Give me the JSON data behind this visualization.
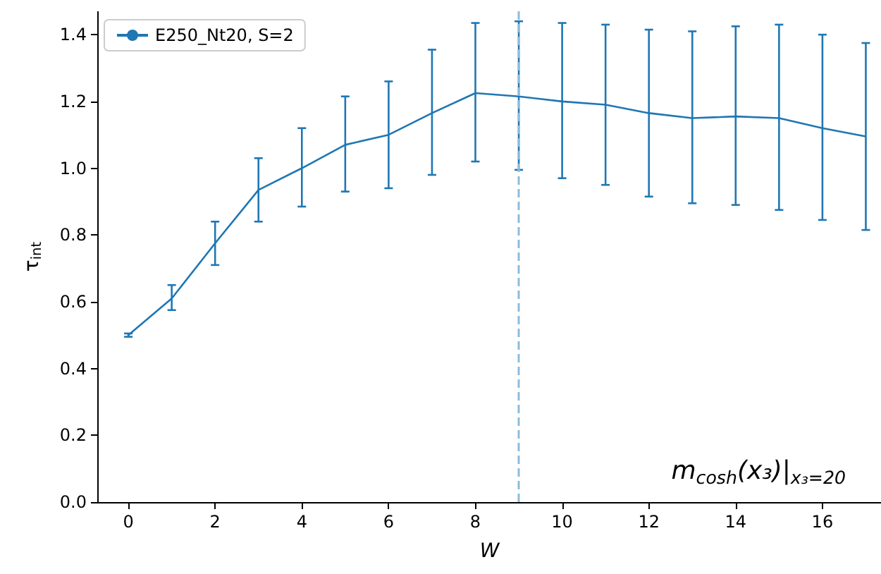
{
  "chart_data": {
    "type": "line",
    "xlabel": "W",
    "ylabel": "τ$_{int}$",
    "x": [
      0,
      1,
      2,
      3,
      4,
      5,
      6,
      7,
      8,
      9,
      10,
      11,
      12,
      13,
      14,
      15,
      16,
      17
    ],
    "series": [
      {
        "name": "E250_Nt20, S=2",
        "color": "#1f77b4",
        "values": [
          0.5,
          0.61,
          0.775,
          0.935,
          1.0,
          1.07,
          1.1,
          1.165,
          1.225,
          1.215,
          1.2,
          1.19,
          1.165,
          1.15,
          1.155,
          1.15,
          1.12,
          1.095
        ],
        "errors": [
          [
            0.495,
            0.505
          ],
          [
            0.575,
            0.65
          ],
          [
            0.71,
            0.84
          ],
          [
            0.84,
            1.03
          ],
          [
            0.885,
            1.12
          ],
          [
            0.93,
            1.215
          ],
          [
            0.94,
            1.26
          ],
          [
            0.98,
            1.355
          ],
          [
            1.02,
            1.435
          ],
          [
            0.995,
            1.44
          ],
          [
            0.97,
            1.435
          ],
          [
            0.95,
            1.43
          ],
          [
            0.915,
            1.415
          ],
          [
            0.895,
            1.41
          ],
          [
            0.89,
            1.425
          ],
          [
            0.875,
            1.43
          ],
          [
            0.845,
            1.4
          ],
          [
            0.815,
            1.375
          ]
        ]
      }
    ],
    "xlim": [
      -0.7,
      17.35
    ],
    "ylim": [
      0,
      1.47
    ],
    "xticks": [
      0,
      2,
      4,
      6,
      8,
      10,
      12,
      14,
      16
    ],
    "yticks": [
      {
        "value": 0,
        "label": "0.0"
      },
      {
        "value": 0.2,
        "label": "0.2"
      },
      {
        "value": 0.4,
        "label": "0.4"
      },
      {
        "value": 0.6,
        "label": "0.6"
      },
      {
        "value": 0.8,
        "label": "0.8"
      },
      {
        "value": 1,
        "label": "1.0"
      },
      {
        "value": 1.2,
        "label": "1.2"
      },
      {
        "value": 1.4,
        "label": "1.4"
      }
    ],
    "ref_lines": [
      {
        "axis": "x",
        "value": 9,
        "color": "#8fbbd9",
        "line_style": "dashed"
      }
    ],
    "annotations": [
      "m$_{cosh}$(x₃)|$_{x₃=20}$"
    ],
    "legend": "top left",
    "grid": false,
    "marker": "none",
    "line_style": "solid"
  }
}
